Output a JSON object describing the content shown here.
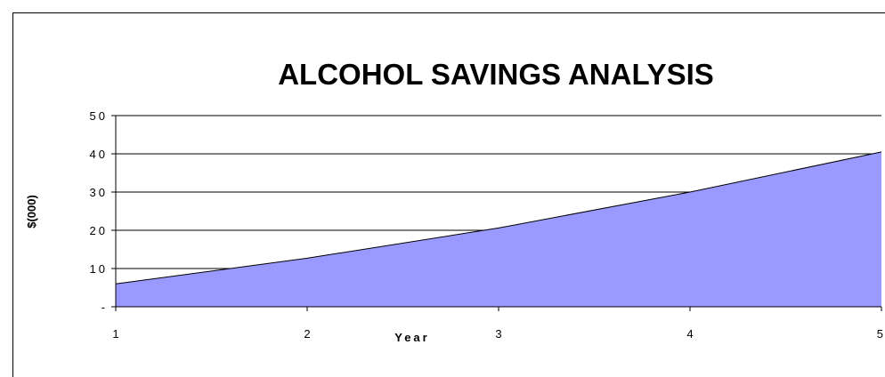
{
  "chart_data": {
    "type": "area",
    "title": "ALCOHOL SAVINGS ANALYSIS",
    "xlabel": "Year",
    "ylabel": "$(000)",
    "x": [
      1,
      2,
      3,
      4,
      5
    ],
    "x_tick_labels": [
      "1",
      "2",
      "3",
      "4",
      "5"
    ],
    "y_tick_labels": [
      "-",
      "10",
      "20",
      "30",
      "40",
      "50"
    ],
    "y_ticks": [
      0,
      10,
      20,
      30,
      40,
      50
    ],
    "series": [
      {
        "values": [
          6,
          12.7,
          20.6,
          30,
          40.5
        ]
      }
    ],
    "ylim": [
      0,
      50
    ],
    "xlim": [
      1,
      5
    ],
    "grid": "horizontal",
    "fill_color": "#9999ff",
    "line_color": "#000000"
  }
}
